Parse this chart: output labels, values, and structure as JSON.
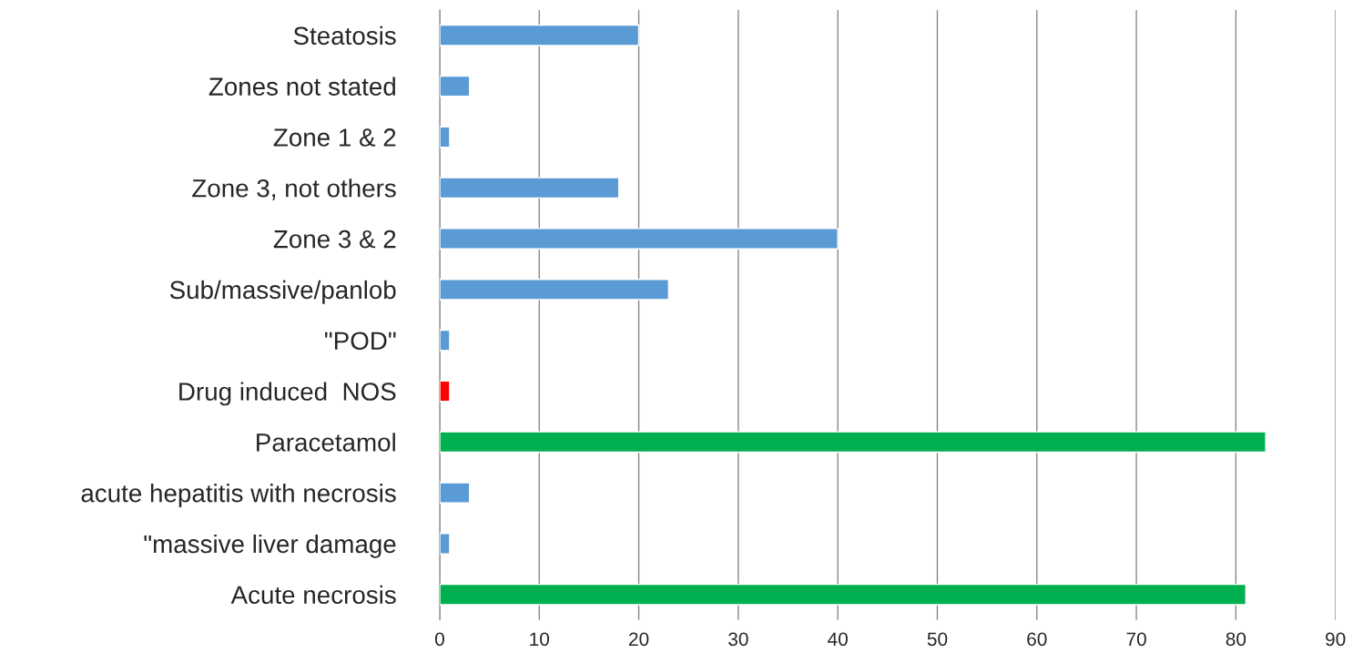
{
  "chart_data": {
    "type": "bar",
    "orientation": "horizontal",
    "categories": [
      "Steatosis",
      "Zones not stated",
      "Zone 1 & 2",
      "Zone 3, not others",
      "Zone 3 & 2",
      "Sub/massive/panlob",
      "\"POD\"",
      "Drug induced  NOS",
      "Paracetamol",
      "acute hepatitis with necrosis",
      "\"massive liver damage",
      "Acute necrosis"
    ],
    "values": [
      20,
      3,
      1,
      18,
      40,
      23,
      1,
      1,
      83,
      3,
      1,
      81
    ],
    "colors": [
      "#5b9bd5",
      "#5b9bd5",
      "#5b9bd5",
      "#5b9bd5",
      "#5b9bd5",
      "#5b9bd5",
      "#5b9bd5",
      "#ff0000",
      "#00b050",
      "#5b9bd5",
      "#5b9bd5",
      "#00b050"
    ],
    "xlim": [
      0,
      90
    ],
    "xticks": [
      0,
      10,
      20,
      30,
      40,
      50,
      60,
      70,
      80,
      90
    ],
    "grid": "x",
    "legend": false
  }
}
